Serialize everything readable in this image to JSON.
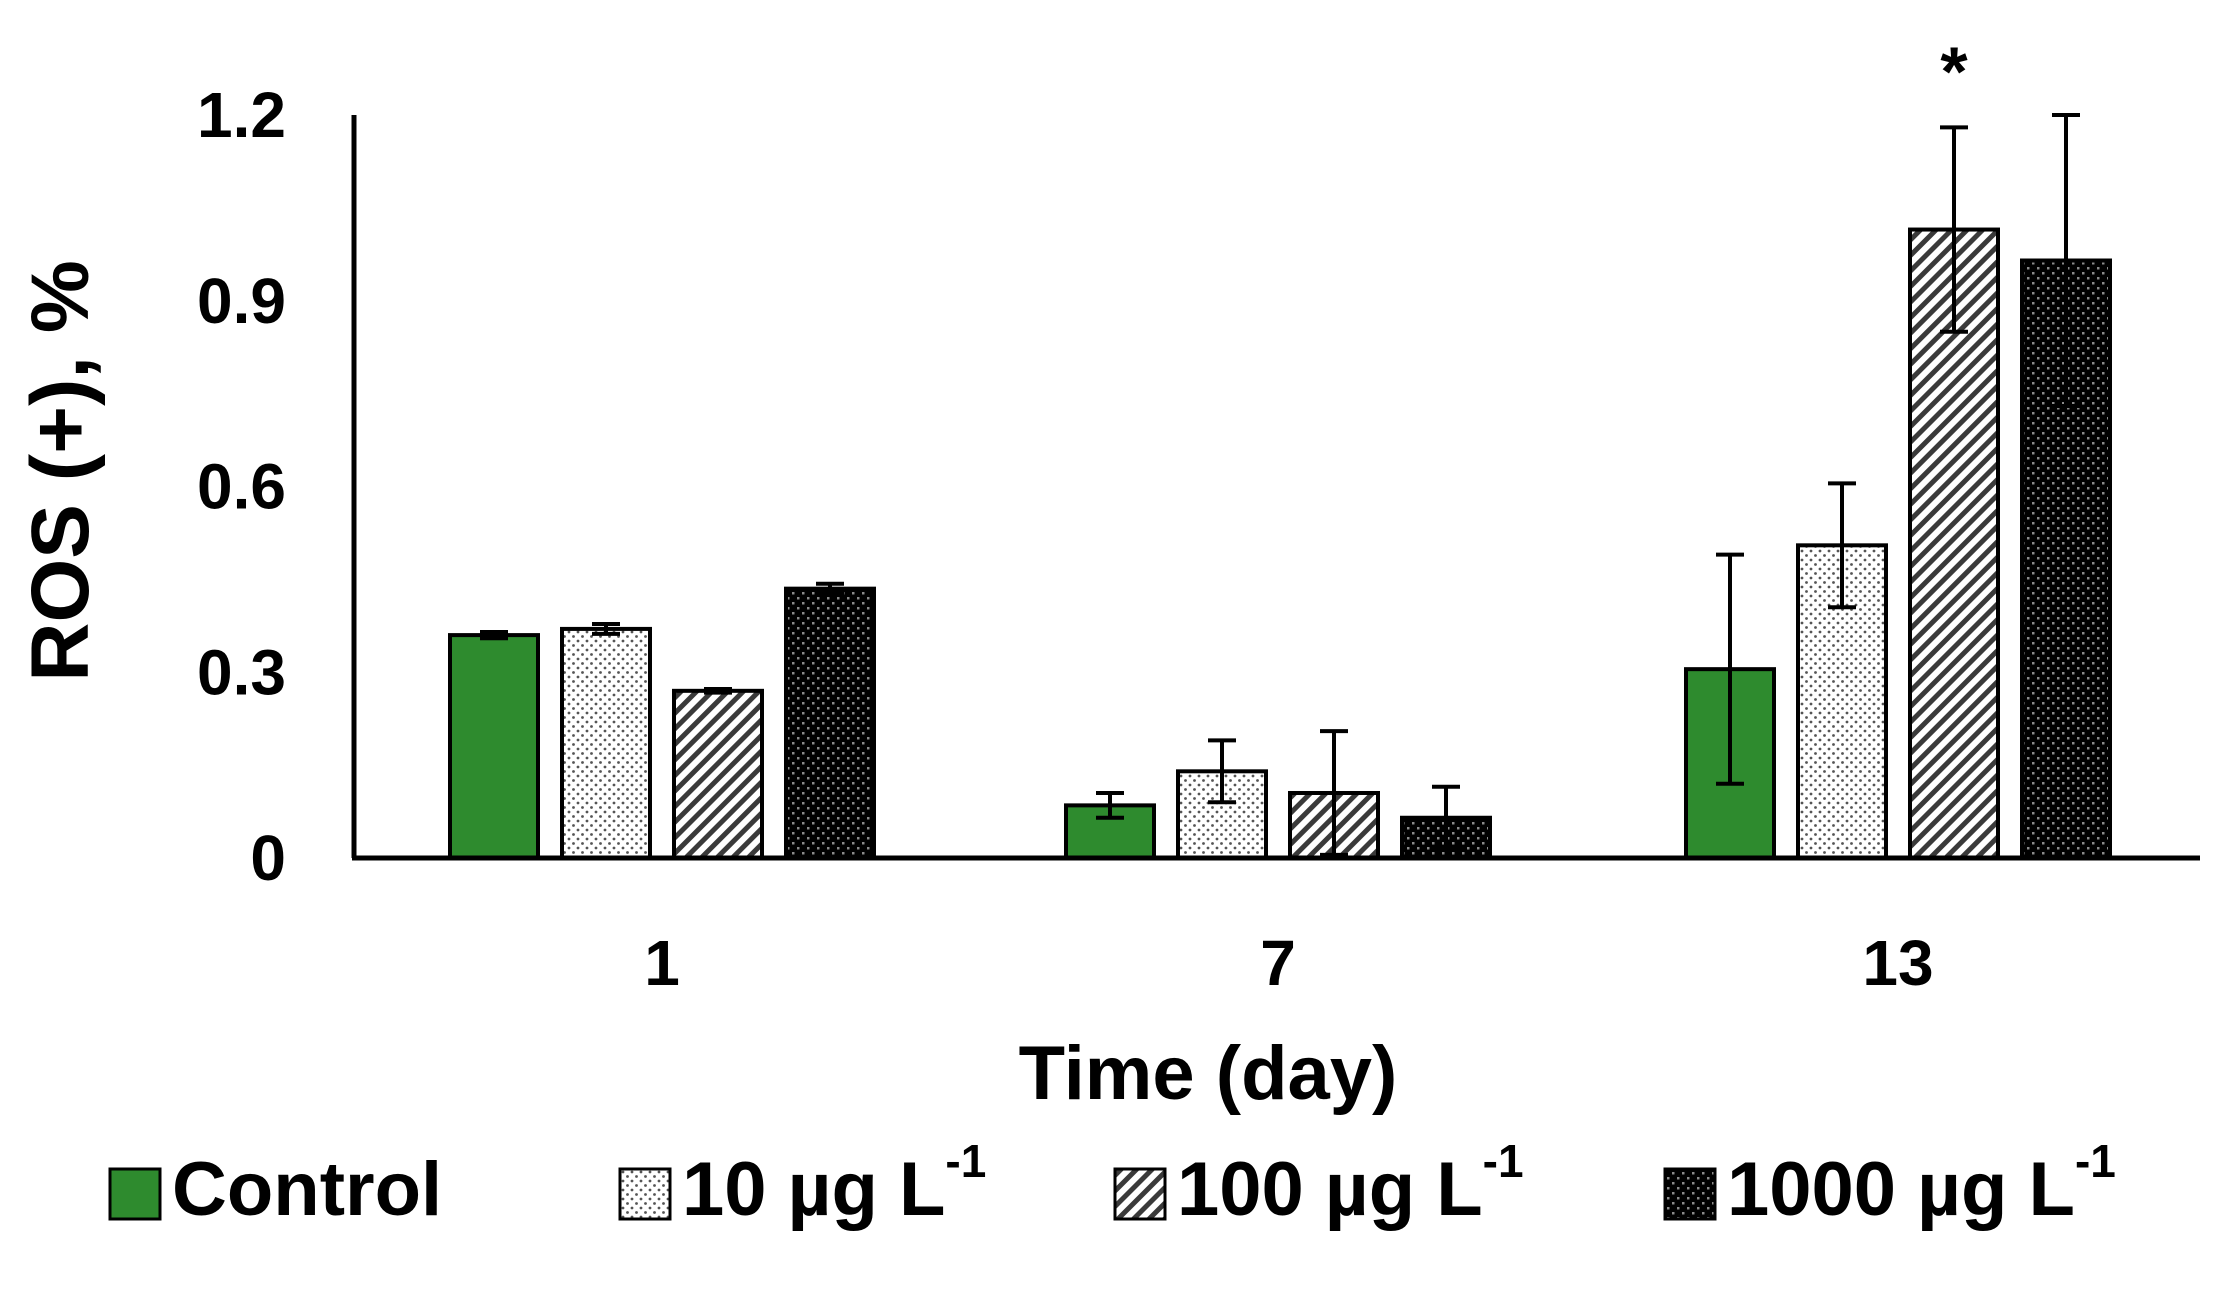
{
  "chart_data": {
    "type": "bar",
    "title": "",
    "xlabel": "Time (day)",
    "ylabel": "ROS (+), %",
    "ylim": [
      0,
      1.2
    ],
    "yticks": [
      "0",
      "0.3",
      "0.6",
      "0.9",
      "1.2"
    ],
    "ytick_values": [
      0,
      0.3,
      0.6,
      0.9,
      1.2
    ],
    "categories": [
      "1",
      "7",
      "13"
    ],
    "series": [
      {
        "name": "Control",
        "unit": "",
        "sup": "",
        "color": "#2e8b2e",
        "pattern": "solid",
        "values": [
          0.36,
          0.085,
          0.305
        ],
        "errors": [
          0.005,
          0.02,
          0.185
        ]
      },
      {
        "name": "10 µg L",
        "unit": "",
        "sup": "-1",
        "color": "#ffffff",
        "pattern": "dots",
        "values": [
          0.37,
          0.14,
          0.505
        ],
        "errors": [
          0.008,
          0.05,
          0.1
        ]
      },
      {
        "name": "100 µg L",
        "unit": "",
        "sup": "-1",
        "color": "#ffffff",
        "pattern": "diagonal",
        "values": [
          0.27,
          0.105,
          1.015
        ],
        "errors": [
          0.003,
          0.1,
          0.165
        ]
      },
      {
        "name": "1000 µg L",
        "unit": "",
        "sup": "-1",
        "color": "#000000",
        "pattern": "checker",
        "values": [
          0.435,
          0.065,
          0.965
        ],
        "errors": [
          0.008,
          0.05,
          0.235
        ]
      }
    ],
    "annotations": [
      {
        "text": "*",
        "category": "13",
        "series": "100 µg L"
      }
    ],
    "legend": {
      "position": "bottom",
      "labels": [
        "Control",
        "10 µg L",
        "100 µg L",
        "1000 µg L"
      ],
      "sup": "-1"
    }
  }
}
